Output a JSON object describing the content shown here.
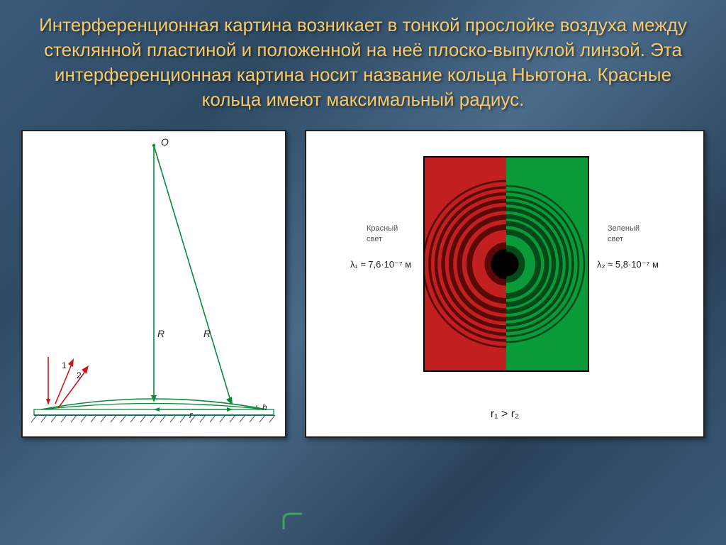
{
  "title": "Интерференционная картина возникает в тонкой прослойке воздуха между стеклянной пластиной и положенной на неё плоско-выпуклой линзой. Эта интерференционная картина носит название кольца Ньютона. Красные кольца имеют максимальный радиус.",
  "left_diagram": {
    "point_O": "O",
    "label_R_left": "R",
    "label_R_right": "R",
    "label_r": "r",
    "label_h": "h",
    "ray1": "1",
    "ray2": "2",
    "line_color": "#0a8a3a",
    "ray_color": "#c81818",
    "hatch_color": "#2a4a8a"
  },
  "right_diagram": {
    "red_bg": "#c22020",
    "green_bg": "#0a9a3a",
    "red_ring_color": "#5a0808",
    "green_ring_color": "#044a18",
    "center_color": "#000000",
    "red_radii": [
      26,
      52,
      66,
      78,
      89,
      99,
      108,
      117
    ],
    "green_radii": [
      22,
      45,
      57,
      67,
      77,
      86,
      94,
      102,
      110
    ],
    "label_red_title": "Красный\nсвет",
    "label_green_title": "Зеленый\nсвет",
    "lambda_red": "λ₁ ≈ 7,6·10⁻⁷ м",
    "lambda_green": "λ₂ ≈ 5,8·10⁻⁷ м",
    "bottom": "r₁ > r₂"
  }
}
